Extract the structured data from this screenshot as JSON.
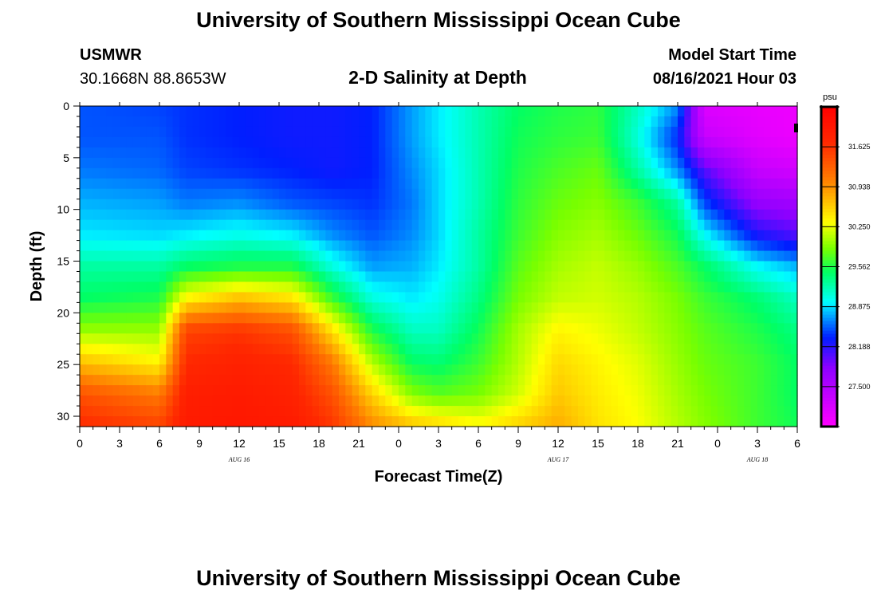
{
  "header": {
    "title": "University of Southern Mississippi Ocean Cube",
    "station": "USMWR",
    "coords": "30.1668N  88.8653W",
    "plot_title": "2-D Salinity at Depth",
    "model_label": "Model Start Time",
    "model_time": "08/16/2021 Hour 03"
  },
  "footer": {
    "title": "University of Southern Mississippi Ocean Cube"
  },
  "chart_data": {
    "type": "heatmap",
    "title": "2-D Salinity at Depth",
    "xlabel": "Forecast Time(Z)",
    "ylabel": "Depth (ft)",
    "x_range": [
      0,
      54
    ],
    "y_range": [
      0,
      31
    ],
    "x_ticks": [
      {
        "v": 0,
        "label": "0"
      },
      {
        "v": 3,
        "label": "3"
      },
      {
        "v": 6,
        "label": "6"
      },
      {
        "v": 9,
        "label": "9"
      },
      {
        "v": 12,
        "label": "12"
      },
      {
        "v": 15,
        "label": "15"
      },
      {
        "v": 18,
        "label": "18"
      },
      {
        "v": 21,
        "label": "21"
      },
      {
        "v": 24,
        "label": "0"
      },
      {
        "v": 27,
        "label": "3"
      },
      {
        "v": 30,
        "label": "6"
      },
      {
        "v": 33,
        "label": "9"
      },
      {
        "v": 36,
        "label": "12"
      },
      {
        "v": 39,
        "label": "15"
      },
      {
        "v": 42,
        "label": "18"
      },
      {
        "v": 45,
        "label": "21"
      },
      {
        "v": 48,
        "label": "0"
      },
      {
        "v": 51,
        "label": "3"
      },
      {
        "v": 54,
        "label": "6"
      }
    ],
    "y_ticks": [
      {
        "v": 0,
        "label": "0"
      },
      {
        "v": 5,
        "label": "5"
      },
      {
        "v": 10,
        "label": "10"
      },
      {
        "v": 15,
        "label": "15"
      },
      {
        "v": 20,
        "label": "20"
      },
      {
        "v": 25,
        "label": "25"
      },
      {
        "v": 30,
        "label": "30"
      }
    ],
    "date_labels": [
      {
        "v": 12,
        "label": "AUG 16"
      },
      {
        "v": 36,
        "label": "AUG 17"
      },
      {
        "v": 51,
        "label": "AUG 18"
      }
    ],
    "colorbar": {
      "unit": "psu",
      "range": [
        26.8,
        32.2
      ],
      "ticks": [
        "31.625",
        "30.938",
        "30.250",
        "29.562",
        "28.875",
        "28.188",
        "27.500"
      ]
    },
    "columns": [
      {
        "t": 0,
        "s": [
          28.45,
          28.45,
          28.55,
          28.7,
          28.85,
          29.2,
          29.4,
          29.9,
          30.6,
          31.3,
          31.6
        ]
      },
      {
        "t": 6,
        "s": [
          28.4,
          28.45,
          28.5,
          28.65,
          28.8,
          29.2,
          29.5,
          29.9,
          30.3,
          31.0,
          31.4
        ]
      },
      {
        "t": 8,
        "s": [
          28.35,
          28.35,
          28.4,
          28.55,
          28.85,
          29.4,
          30.3,
          31.4,
          31.6,
          31.75,
          31.8
        ]
      },
      {
        "t": 12,
        "s": [
          28.3,
          28.3,
          28.35,
          28.6,
          28.95,
          29.5,
          30.6,
          31.5,
          31.7,
          31.8,
          31.85
        ]
      },
      {
        "t": 16,
        "s": [
          28.25,
          28.25,
          28.3,
          28.45,
          28.85,
          29.5,
          30.4,
          31.3,
          31.6,
          31.7,
          31.8
        ]
      },
      {
        "t": 19,
        "s": [
          28.25,
          28.25,
          28.25,
          28.4,
          28.6,
          29.0,
          29.6,
          30.4,
          31.0,
          31.3,
          31.5
        ]
      },
      {
        "t": 22,
        "s": [
          28.3,
          28.3,
          28.3,
          28.35,
          28.45,
          28.65,
          29.0,
          29.5,
          30.0,
          30.5,
          30.9
        ]
      },
      {
        "t": 25,
        "s": [
          28.65,
          28.65,
          28.6,
          28.55,
          28.6,
          28.7,
          28.85,
          29.1,
          29.4,
          29.85,
          30.6
        ]
      },
      {
        "t": 27,
        "s": [
          28.85,
          28.85,
          28.8,
          28.8,
          28.8,
          28.85,
          28.95,
          29.1,
          29.35,
          29.7,
          30.5
        ]
      },
      {
        "t": 30,
        "s": [
          29.15,
          29.15,
          29.15,
          29.15,
          29.2,
          29.2,
          29.3,
          29.45,
          29.6,
          29.8,
          30.3
        ]
      },
      {
        "t": 33,
        "s": [
          29.4,
          29.45,
          29.5,
          29.55,
          29.6,
          29.7,
          29.8,
          29.95,
          30.0,
          30.1,
          30.5
        ]
      },
      {
        "t": 36,
        "s": [
          29.5,
          29.55,
          29.65,
          29.75,
          29.85,
          29.95,
          30.05,
          30.3,
          30.45,
          30.55,
          30.7
        ]
      },
      {
        "t": 39,
        "s": [
          29.55,
          29.6,
          29.75,
          29.85,
          29.95,
          30.05,
          30.1,
          30.2,
          30.3,
          30.35,
          30.4
        ]
      },
      {
        "t": 42,
        "s": [
          29.1,
          29.0,
          29.2,
          29.6,
          29.75,
          29.9,
          30.0,
          30.05,
          30.15,
          30.2,
          30.25
        ]
      },
      {
        "t": 45,
        "s": [
          28.6,
          28.3,
          28.6,
          29.2,
          29.45,
          29.65,
          29.8,
          29.85,
          29.9,
          29.95,
          30.0
        ]
      },
      {
        "t": 47,
        "s": [
          27.1,
          27.3,
          28.0,
          28.4,
          28.9,
          29.4,
          29.6,
          29.7,
          29.75,
          29.8,
          29.85
        ]
      },
      {
        "t": 51,
        "s": [
          27.0,
          27.05,
          27.3,
          27.7,
          28.2,
          28.9,
          29.35,
          29.5,
          29.6,
          29.6,
          29.6
        ]
      },
      {
        "t": 54,
        "s": [
          26.95,
          26.95,
          27.2,
          27.6,
          28.0,
          28.7,
          29.1,
          29.3,
          29.4,
          29.4,
          29.45
        ]
      }
    ]
  }
}
